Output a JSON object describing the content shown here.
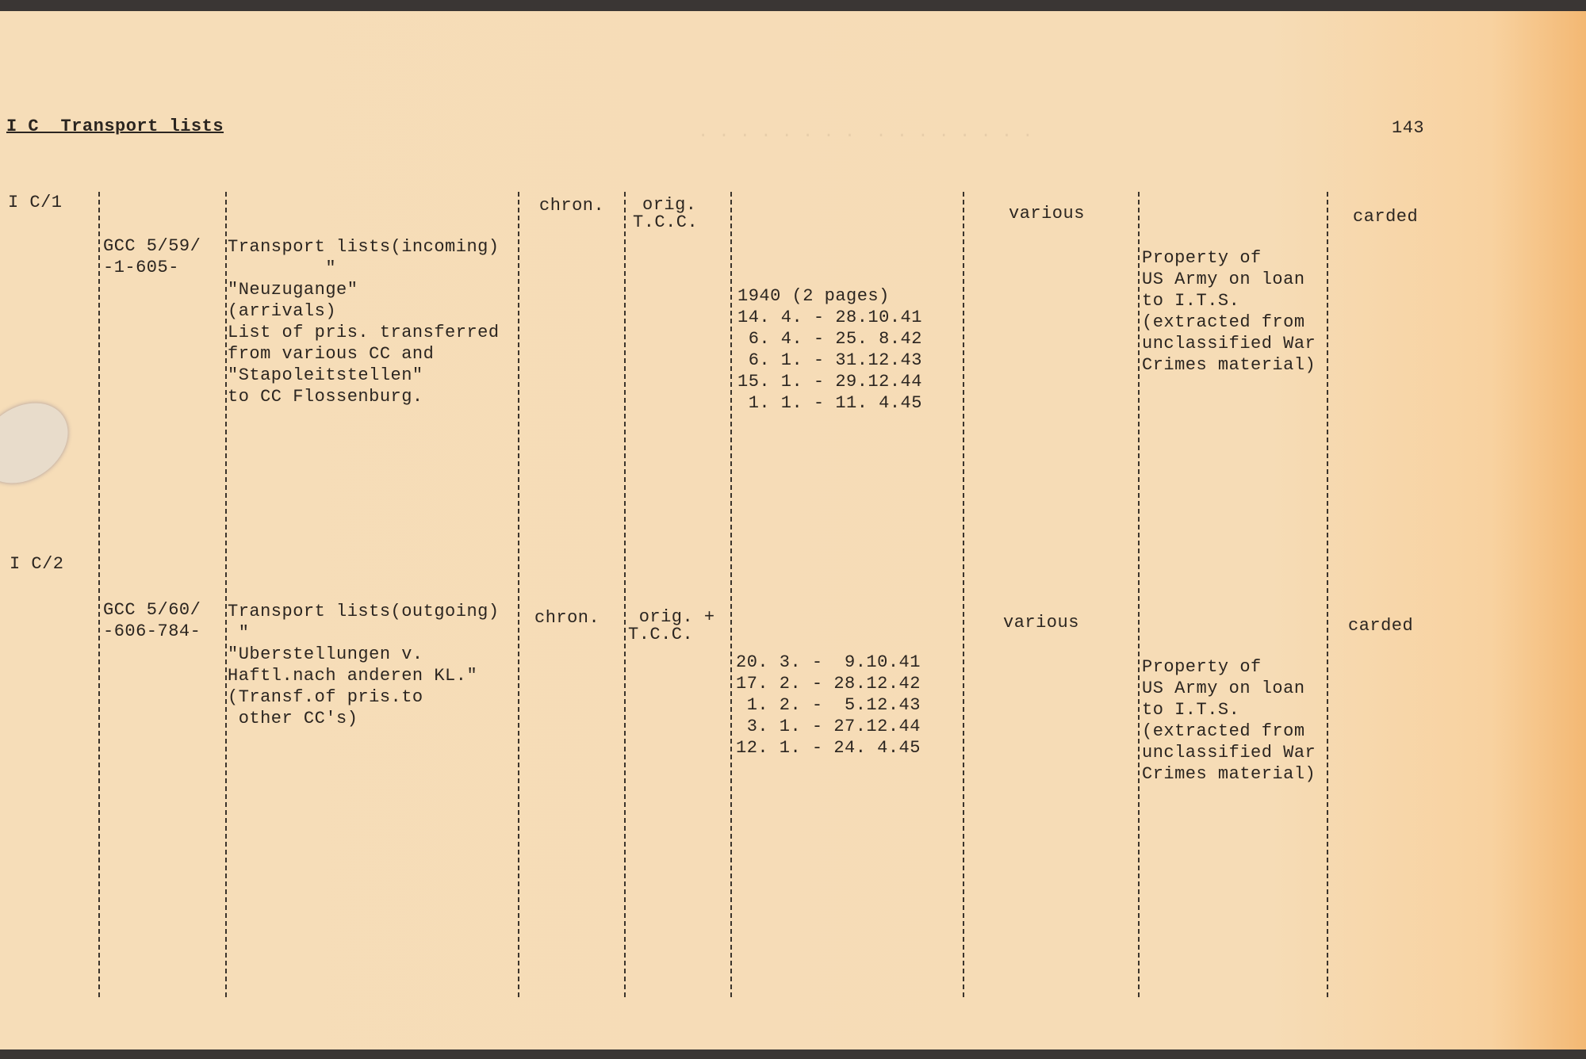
{
  "header": {
    "section_title": "I C  Transport lists",
    "page_number": "143"
  },
  "entries": [
    {
      "code": "I C/1",
      "signature": [
        "GCC 5/59/",
        "-1-605-"
      ],
      "description": [
        "Transport lists(incoming)",
        "         \"",
        "\"Neuzugange\"",
        "(arrivals)",
        "List of pris. transferred",
        "from various CC and",
        "\"Stapoleitstellen\"",
        "to CC Flossenburg."
      ],
      "arrangement": "chron.",
      "type": [
        "orig.",
        "T.C.C."
      ],
      "dates": [
        "1940 (2 pages)",
        "14. 4. - 28.10.41",
        " 6. 4. - 25. 8.42",
        " 6. 1. - 31.12.43",
        "15. 1. - 29.12.44",
        " 1. 1. - 11. 4.45"
      ],
      "quantity": "various",
      "remarks": [
        "Property of",
        "US Army on loan",
        "to I.T.S.",
        "(extracted from",
        "unclassified War",
        "Crimes material)"
      ],
      "status": "carded"
    },
    {
      "code": "I C/2",
      "signature": [
        "GCC 5/60/",
        "-606-784-"
      ],
      "description": [
        "Transport lists(outgoing)",
        " \"",
        "\"Uberstellungen v.",
        "Haftl.nach anderen KL.\"",
        "(Transf.of pris.to",
        " other CC's)"
      ],
      "arrangement": "chron.",
      "type": [
        " orig. +",
        "T.C.C."
      ],
      "dates": [
        "20. 3. -  9.10.41",
        "17. 2. - 28.12.42",
        " 1. 2. -  5.12.43",
        " 3. 1. - 27.12.44",
        "12. 1. - 24. 4.45"
      ],
      "quantity": "various",
      "remarks": [
        "Property of",
        "US Army on loan",
        "to I.T.S.",
        "(extracted from",
        "unclassified War",
        "Crimes material)"
      ],
      "status": "carded"
    }
  ]
}
